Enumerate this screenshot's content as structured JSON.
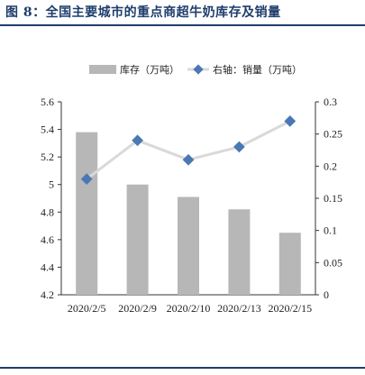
{
  "figure": {
    "title": "图 8：全国主要城市的重点商超牛奶库存及销量"
  },
  "chart_data": {
    "type": "bar",
    "categories": [
      "2020/2/5",
      "2020/2/9",
      "2020/2/10",
      "2020/2/13",
      "2020/2/15"
    ],
    "series": [
      {
        "name": "库存（万吨）",
        "type": "bar",
        "axis": "left",
        "values": [
          5.38,
          5.0,
          4.91,
          4.82,
          4.65
        ],
        "color": "#b7b7b7"
      },
      {
        "name": "右轴：销量（万吨）",
        "type": "line",
        "axis": "right",
        "values": [
          0.18,
          0.24,
          0.21,
          0.23,
          0.27
        ],
        "color": "#4a78b5",
        "line_color": "#d9d9d9"
      }
    ],
    "y_left": {
      "ylim": [
        4.2,
        5.6
      ],
      "ticks": [
        "4.2",
        "4.4",
        "4.6",
        "4.8",
        "5",
        "5.2",
        "5.4",
        "5.6"
      ]
    },
    "y_right": {
      "ylim": [
        0,
        0.3
      ],
      "ticks": [
        "0",
        "0.05",
        "0.1",
        "0.15",
        "0.2",
        "0.25",
        "0.3"
      ]
    },
    "legend_position": "top",
    "grid": false
  }
}
